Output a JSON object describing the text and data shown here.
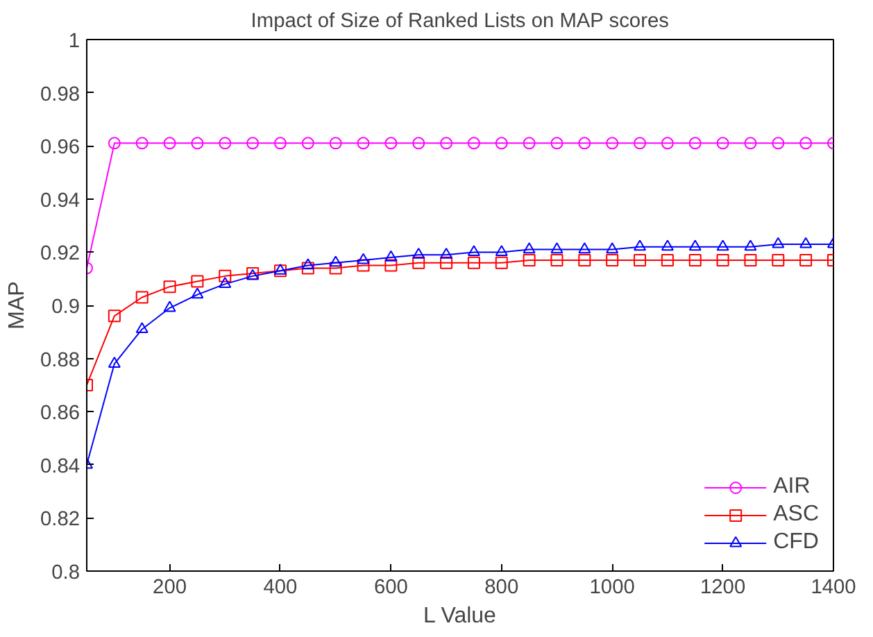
{
  "chart_data": {
    "type": "line",
    "title": "Impact of Size of Ranked Lists on MAP scores",
    "xlabel": "L Value",
    "ylabel": "MAP",
    "x": [
      50,
      100,
      150,
      200,
      250,
      300,
      350,
      400,
      450,
      500,
      550,
      600,
      650,
      700,
      750,
      800,
      850,
      900,
      950,
      1000,
      1050,
      1100,
      1150,
      1200,
      1250,
      1300,
      1350,
      1400
    ],
    "xlim": [
      50,
      1400
    ],
    "xticks": [
      200,
      400,
      600,
      800,
      1000,
      1200,
      1400
    ],
    "ylim": [
      0.8,
      1
    ],
    "yticks": [
      0.8,
      0.82,
      0.84,
      0.86,
      0.88,
      0.9,
      0.92,
      0.94,
      0.96,
      0.98,
      1
    ],
    "grid": false,
    "legend": "bottom right",
    "line_style": "solid",
    "series": [
      {
        "name": "AIR",
        "color": "#ff00ff",
        "marker": "circle",
        "values": [
          0.914,
          0.961,
          0.961,
          0.961,
          0.961,
          0.961,
          0.961,
          0.961,
          0.961,
          0.961,
          0.961,
          0.961,
          0.961,
          0.961,
          0.961,
          0.961,
          0.961,
          0.961,
          0.961,
          0.961,
          0.961,
          0.961,
          0.961,
          0.961,
          0.961,
          0.961,
          0.961,
          0.961
        ]
      },
      {
        "name": "ASC",
        "color": "#ff0000",
        "marker": "square",
        "values": [
          0.87,
          0.896,
          0.903,
          0.907,
          0.909,
          0.911,
          0.912,
          0.913,
          0.914,
          0.914,
          0.915,
          0.915,
          0.916,
          0.916,
          0.916,
          0.916,
          0.917,
          0.917,
          0.917,
          0.917,
          0.917,
          0.917,
          0.917,
          0.917,
          0.917,
          0.917,
          0.917,
          0.917
        ]
      },
      {
        "name": "CFD",
        "color": "#0000ff",
        "marker": "triangle",
        "values": [
          0.84,
          0.878,
          0.891,
          0.899,
          0.904,
          0.908,
          0.911,
          0.913,
          0.915,
          0.916,
          0.917,
          0.918,
          0.919,
          0.919,
          0.92,
          0.92,
          0.921,
          0.921,
          0.921,
          0.921,
          0.922,
          0.922,
          0.922,
          0.922,
          0.922,
          0.923,
          0.923,
          0.923
        ]
      }
    ]
  }
}
